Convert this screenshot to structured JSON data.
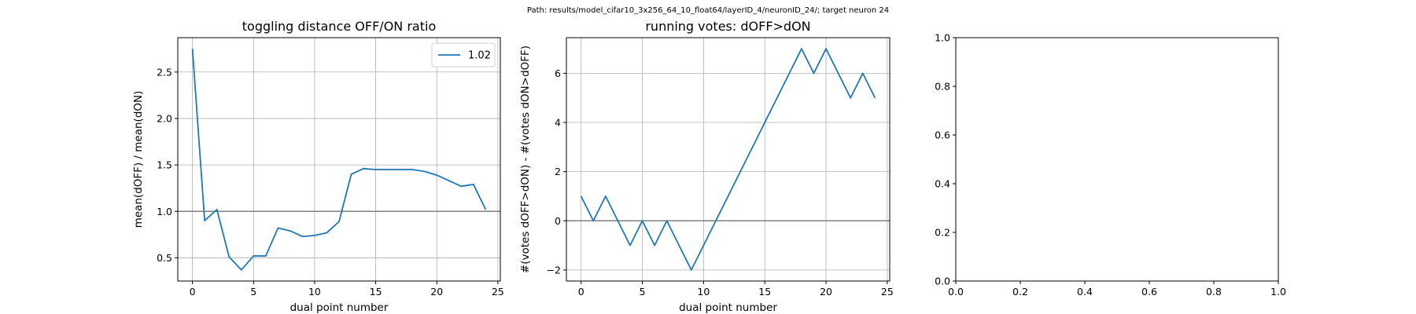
{
  "suptitle": "Path: results/model_cifar10_3x256_64_10_float64/layerID_4/neuronID_24/; target neuron 24",
  "colors": {
    "series": "#1f77b4",
    "grid": "#b0b0b0",
    "refline": "#808080",
    "axis": "#000000"
  },
  "chart_data": [
    {
      "type": "line",
      "title": "toggling distance OFF/ON ratio",
      "xlabel": "dual point number",
      "ylabel": "mean(dOFF) / mean(dON)",
      "xlim": [
        -1.2,
        25.2
      ],
      "ylim": [
        0.25,
        2.87
      ],
      "xticks": [
        0,
        5,
        10,
        15,
        20,
        25
      ],
      "yticks": [
        0.5,
        1.0,
        1.5,
        2.0,
        2.5
      ],
      "ytick_labels": [
        "0.5",
        "1.0",
        "1.5",
        "2.0",
        "2.5"
      ],
      "grid": true,
      "hline": 1.0,
      "legend_position": "upper right",
      "series": [
        {
          "name": "1.02",
          "x": [
            0,
            1,
            2,
            3,
            4,
            5,
            6,
            7,
            8,
            9,
            10,
            11,
            12,
            13,
            14,
            15,
            16,
            17,
            18,
            19,
            20,
            21,
            22,
            23,
            24
          ],
          "y": [
            2.75,
            0.9,
            1.02,
            0.51,
            0.37,
            0.52,
            0.52,
            0.82,
            0.79,
            0.73,
            0.74,
            0.77,
            0.89,
            1.4,
            1.46,
            1.45,
            1.45,
            1.45,
            1.45,
            1.43,
            1.39,
            1.33,
            1.27,
            1.29,
            1.02
          ]
        }
      ]
    },
    {
      "type": "line",
      "title": "running votes: dOFF>dON",
      "xlabel": "dual point number",
      "ylabel": "#(votes dOFF>dON) - #(votes dON>dOFF)",
      "xlim": [
        -1.2,
        25.2
      ],
      "ylim": [
        -2.45,
        7.45
      ],
      "xticks": [
        0,
        5,
        10,
        15,
        20,
        25
      ],
      "yticks": [
        -2,
        0,
        2,
        4,
        6
      ],
      "ytick_labels": [
        "−2",
        "0",
        "2",
        "4",
        "6"
      ],
      "grid": true,
      "hline": 0,
      "series": [
        {
          "x": [
            0,
            1,
            2,
            3,
            4,
            5,
            6,
            7,
            8,
            9,
            10,
            11,
            12,
            13,
            14,
            15,
            16,
            17,
            18,
            19,
            20,
            21,
            22,
            23,
            24
          ],
          "y": [
            1,
            0,
            1,
            0,
            -1,
            0,
            -1,
            0,
            -1,
            -2,
            -1,
            0,
            1,
            2,
            3,
            4,
            5,
            6,
            7,
            6,
            7,
            6,
            5,
            6,
            5
          ]
        }
      ]
    },
    {
      "type": "line",
      "title": "",
      "xlabel": "",
      "ylabel": "",
      "xlim": [
        0,
        1
      ],
      "ylim": [
        0,
        1
      ],
      "xticks": [
        0,
        0.2,
        0.4,
        0.6,
        0.8,
        1.0
      ],
      "yticks": [
        0,
        0.2,
        0.4,
        0.6,
        0.8,
        1.0
      ],
      "xtick_labels": [
        "0.0",
        "0.2",
        "0.4",
        "0.6",
        "0.8",
        "1.0"
      ],
      "ytick_labels": [
        "0.0",
        "0.2",
        "0.4",
        "0.6",
        "0.8",
        "1.0"
      ],
      "grid": false,
      "series": []
    }
  ]
}
